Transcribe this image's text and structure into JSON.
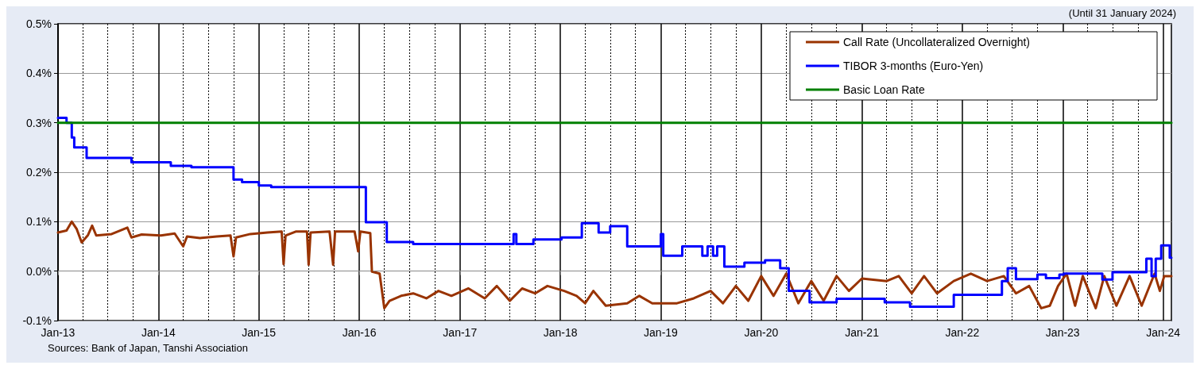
{
  "chart_data": {
    "type": "line",
    "annotations": [
      "(Until 31 January 2024)",
      "Sources: Bank of Japan, Tanshi Association"
    ],
    "xlim": [
      "2013-01-01",
      "2024-01-31"
    ],
    "xticks": [
      {
        "value": "2013-01-01",
        "label": "Jan-13"
      },
      {
        "value": "2014-01-01",
        "label": "Jan-14"
      },
      {
        "value": "2015-01-01",
        "label": "Jan-15"
      },
      {
        "value": "2016-01-01",
        "label": "Jan-16"
      },
      {
        "value": "2017-01-01",
        "label": "Jan-17"
      },
      {
        "value": "2018-01-01",
        "label": "Jan-18"
      },
      {
        "value": "2019-01-01",
        "label": "Jan-19"
      },
      {
        "value": "2020-01-01",
        "label": "Jan-20"
      },
      {
        "value": "2021-01-01",
        "label": "Jan-21"
      },
      {
        "value": "2022-01-01",
        "label": "Jan-22"
      },
      {
        "value": "2023-01-01",
        "label": "Jan-23"
      },
      {
        "value": "2024-01-01",
        "label": "Jan-24"
      }
    ],
    "ylim": [
      -0.1,
      0.5
    ],
    "yticks": [
      {
        "value": -0.1,
        "label": "-0.1%"
      },
      {
        "value": 0,
        "label": "0.0%"
      },
      {
        "value": 0.1,
        "label": "0.1%"
      },
      {
        "value": 0.2,
        "label": "0.2%"
      },
      {
        "value": 0.3,
        "label": "0.3%"
      },
      {
        "value": 0.4,
        "label": "0.4%"
      },
      {
        "value": 0.5,
        "label": "0.5%"
      }
    ],
    "grid": true,
    "legend": "top right",
    "marker": "none",
    "line_style": "solid",
    "series": [
      {
        "name": "Call Rate (Uncollateralized Overnight)",
        "color": "#993300",
        "x": [
          "2013-01-01",
          "2013-02-01",
          "2013-02-20",
          "2013-03-10",
          "2013-03-28",
          "2013-04-20",
          "2013-05-05",
          "2013-05-20",
          "2013-07-15",
          "2013-09-10",
          "2013-09-25",
          "2013-11-01",
          "2014-01-10",
          "2014-03-01",
          "2014-04-01",
          "2014-04-15",
          "2014-06-01",
          "2014-08-01",
          "2014-09-20",
          "2014-10-01",
          "2014-10-10",
          "2014-12-01",
          "2015-02-01",
          "2015-03-25",
          "2015-04-01",
          "2015-04-08",
          "2015-05-15",
          "2015-06-25",
          "2015-07-01",
          "2015-07-08",
          "2015-09-15",
          "2015-09-28",
          "2015-10-05",
          "2015-12-15",
          "2015-12-28",
          "2016-01-05",
          "2016-02-10",
          "2016-02-16",
          "2016-03-15",
          "2016-04-01",
          "2016-04-20",
          "2016-06-01",
          "2016-07-15",
          "2016-09-01",
          "2016-10-15",
          "2016-12-01",
          "2017-02-01",
          "2017-04-01",
          "2017-05-15",
          "2017-07-01",
          "2017-08-15",
          "2017-10-01",
          "2017-11-15",
          "2018-01-15",
          "2018-03-01",
          "2018-04-01",
          "2018-05-01",
          "2018-06-15",
          "2018-09-01",
          "2018-10-15",
          "2018-12-01",
          "2019-03-01",
          "2019-05-01",
          "2019-07-01",
          "2019-08-15",
          "2019-10-01",
          "2019-11-15",
          "2020-01-01",
          "2020-02-15",
          "2020-04-01",
          "2020-05-15",
          "2020-07-01",
          "2020-08-15",
          "2020-10-01",
          "2020-11-15",
          "2021-01-01",
          "2021-04-01",
          "2021-05-15",
          "2021-07-01",
          "2021-08-15",
          "2021-10-01",
          "2021-12-01",
          "2022-02-01",
          "2022-04-01",
          "2022-06-01",
          "2022-07-15",
          "2022-09-01",
          "2022-10-15",
          "2022-11-15",
          "2022-12-15",
          "2023-01-15",
          "2023-02-15",
          "2023-03-15",
          "2023-05-01",
          "2023-06-01",
          "2023-07-15",
          "2023-09-01",
          "2023-10-15",
          "2023-12-01",
          "2023-12-20",
          "2024-01-05",
          "2024-01-31"
        ],
        "values": [
          0.078,
          0.082,
          0.1,
          0.085,
          0.058,
          0.073,
          0.092,
          0.072,
          0.075,
          0.088,
          0.068,
          0.074,
          0.072,
          0.076,
          0.05,
          0.07,
          0.067,
          0.07,
          0.072,
          0.03,
          0.068,
          0.075,
          0.078,
          0.08,
          0.014,
          0.072,
          0.08,
          0.08,
          0.013,
          0.078,
          0.08,
          0.013,
          0.08,
          0.08,
          0.04,
          0.08,
          0.077,
          -0.001,
          -0.005,
          -0.075,
          -0.06,
          -0.05,
          -0.045,
          -0.055,
          -0.04,
          -0.05,
          -0.035,
          -0.055,
          -0.03,
          -0.06,
          -0.035,
          -0.045,
          -0.03,
          -0.04,
          -0.05,
          -0.065,
          -0.04,
          -0.07,
          -0.065,
          -0.05,
          -0.065,
          -0.065,
          -0.055,
          -0.04,
          -0.065,
          -0.03,
          -0.06,
          -0.01,
          -0.05,
          -0.005,
          -0.065,
          -0.02,
          -0.06,
          -0.01,
          -0.04,
          -0.015,
          -0.02,
          -0.01,
          -0.045,
          -0.01,
          -0.045,
          -0.02,
          -0.005,
          -0.02,
          -0.01,
          -0.045,
          -0.03,
          -0.075,
          -0.07,
          -0.03,
          -0.005,
          -0.07,
          -0.01,
          -0.075,
          -0.01,
          -0.07,
          -0.01,
          -0.07,
          -0.005,
          -0.04,
          -0.01,
          -0.01
        ]
      },
      {
        "name": "TIBOR 3-months (Euro-Yen)",
        "color": "#0000ff",
        "type": "step",
        "x": [
          "2013-01-01",
          "2013-02-01",
          "2013-02-20",
          "2013-03-01",
          "2013-04-15",
          "2013-09-25",
          "2014-02-15",
          "2014-05-01",
          "2014-10-01",
          "2014-11-01",
          "2015-01-01",
          "2015-02-15",
          "2016-01-25",
          "2016-04-10",
          "2016-07-15",
          "2017-07-15",
          "2017-07-25",
          "2017-09-25",
          "2018-01-05",
          "2018-03-20",
          "2018-05-20",
          "2018-07-01",
          "2018-09-01",
          "2019-01-01",
          "2019-01-10",
          "2019-03-20",
          "2019-06-01",
          "2019-06-20",
          "2019-07-10",
          "2019-07-25",
          "2019-08-20",
          "2019-11-01",
          "2020-01-15",
          "2020-03-10",
          "2020-04-10",
          "2020-06-25",
          "2020-10-01",
          "2021-03-25",
          "2021-06-25",
          "2021-12-01",
          "2022-05-25",
          "2022-06-15",
          "2022-07-15",
          "2022-10-01",
          "2022-11-01",
          "2022-12-20",
          "2023-01-05",
          "2023-05-25",
          "2023-07-01",
          "2023-11-01",
          "2023-11-20",
          "2023-12-05",
          "2023-12-25",
          "2024-01-25",
          "2024-01-31"
        ],
        "values": [
          0.31,
          0.3,
          0.27,
          0.25,
          0.229,
          0.22,
          0.213,
          0.21,
          0.185,
          0.18,
          0.173,
          0.17,
          0.099,
          0.059,
          0.055,
          0.075,
          0.055,
          0.064,
          0.068,
          0.097,
          0.078,
          0.091,
          0.05,
          0.075,
          0.031,
          0.05,
          0.031,
          0.05,
          0.031,
          0.05,
          0.009,
          0.017,
          0.022,
          0.006,
          -0.04,
          -0.063,
          -0.056,
          -0.063,
          -0.072,
          -0.048,
          -0.02,
          0.006,
          -0.016,
          -0.007,
          -0.014,
          -0.007,
          -0.005,
          -0.017,
          -0.002,
          0.025,
          -0.01,
          0.025,
          0.052,
          0.027,
          0.027
        ]
      },
      {
        "name": "Basic Loan Rate",
        "color": "#008000",
        "type": "step",
        "x": [
          "2013-01-01",
          "2024-01-31"
        ],
        "values": [
          0.3,
          0.3
        ]
      }
    ]
  }
}
